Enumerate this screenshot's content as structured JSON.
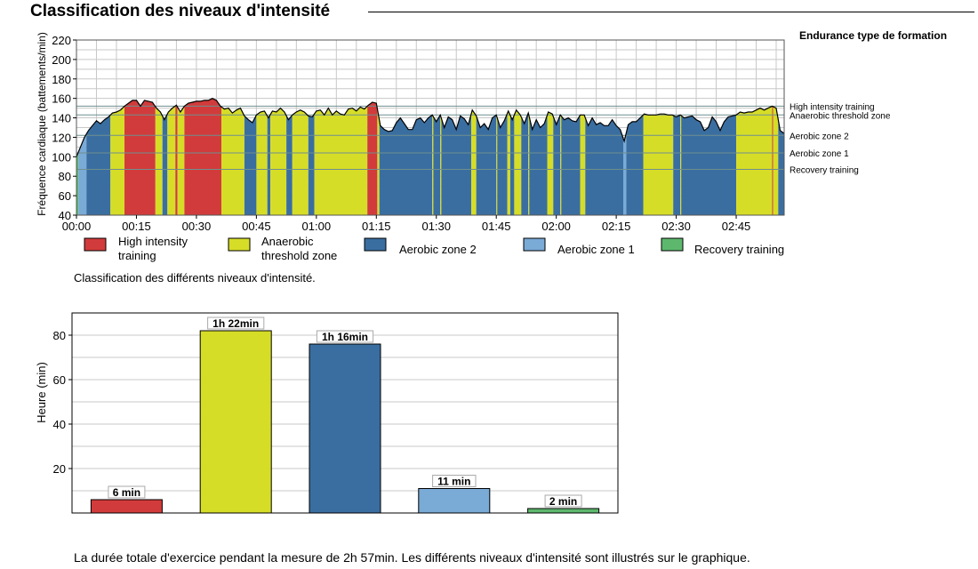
{
  "page": {
    "title": "Classification des niveaux d'intensité",
    "side_title": "Endurance type de formation",
    "caption": "Classification des différents niveaux d'intensité.",
    "summary": "La durée totale d'exercice pendant la mesure de 2h 57min. Les différents niveaux d'intensité sont illustrés sur le graphique."
  },
  "colors": {
    "high": "#d23b3b",
    "anaerobic": "#d6dd27",
    "aerobic2": "#3a6ea0",
    "aerobic1": "#7aaad6",
    "recovery": "#5db86d",
    "grid": "#c8c8c8",
    "zone_line": "#6f8f8f"
  },
  "chart_data": [
    {
      "type": "area",
      "title": "Classification des niveaux d'intensité",
      "xlabel": "",
      "ylabel": "Fréquence cardiaque (battements/min)",
      "xlim": [
        0,
        177
      ],
      "ylim": [
        40,
        220
      ],
      "x_ticks": [
        0,
        15,
        30,
        45,
        60,
        75,
        90,
        105,
        120,
        135,
        150,
        165
      ],
      "x_tick_labels": [
        "00:00",
        "00:15",
        "00:30",
        "00:45",
        "01:00",
        "01:15",
        "01:30",
        "01:45",
        "02:00",
        "02:15",
        "02:30",
        "02:45"
      ],
      "y_ticks": [
        40,
        60,
        80,
        100,
        120,
        140,
        160,
        180,
        200,
        220
      ],
      "zone_thresholds": [
        {
          "label": "High intensity training",
          "value": 152
        },
        {
          "label": "Anaerobic threshold zone",
          "value": 143
        },
        {
          "label": "Aerobic zone 2",
          "value": 122
        },
        {
          "label": "Aerobic zone 1",
          "value": 104
        },
        {
          "label": "Recovery training",
          "value": 87
        }
      ],
      "legend": [
        {
          "label": "High intensity training",
          "key": "high"
        },
        {
          "label": "Anaerobic threshold zone",
          "key": "anaerobic"
        },
        {
          "label": "Aerobic zone 2",
          "key": "aerobic2"
        },
        {
          "label": "Aerobic zone 1",
          "key": "aerobic1"
        },
        {
          "label": "Recovery training",
          "key": "recovery"
        }
      ],
      "legend_display": [
        "High intensity\ntraining",
        "Anaerobic\nthreshold zone",
        "Aerobic zone 2",
        "Aerobic zone 1",
        "Recovery training"
      ],
      "series": [
        {
          "name": "Heart rate",
          "x": [
            0,
            1,
            2,
            3,
            4,
            5,
            6,
            7,
            8,
            9,
            10,
            11,
            12,
            13,
            14,
            15,
            16,
            17,
            18,
            19,
            20,
            21,
            22,
            23,
            24,
            25,
            26,
            27,
            28,
            29,
            30,
            31,
            32,
            33,
            34,
            35,
            36,
            37,
            38,
            39,
            40,
            41,
            42,
            43,
            44,
            45,
            46,
            47,
            48,
            49,
            50,
            51,
            52,
            53,
            54,
            55,
            56,
            57,
            58,
            59,
            60,
            61,
            62,
            63,
            64,
            65,
            66,
            67,
            68,
            69,
            70,
            71,
            72,
            73,
            74,
            75,
            76,
            77,
            78,
            79,
            80,
            81,
            82,
            83,
            84,
            85,
            86,
            87,
            88,
            89,
            90,
            91,
            92,
            93,
            94,
            95,
            96,
            97,
            98,
            99,
            100,
            101,
            102,
            103,
            104,
            105,
            106,
            107,
            108,
            109,
            110,
            111,
            112,
            113,
            114,
            115,
            116,
            117,
            118,
            119,
            120,
            121,
            122,
            123,
            124,
            125,
            126,
            127,
            128,
            129,
            130,
            131,
            132,
            133,
            134,
            135,
            136,
            137,
            138,
            139,
            140,
            141,
            142,
            143,
            144,
            145,
            146,
            147,
            148,
            149,
            150,
            151,
            152,
            153,
            154,
            155,
            156,
            157,
            158,
            159,
            160,
            161,
            162,
            163,
            164,
            165,
            166,
            167,
            168,
            169,
            170,
            171,
            172,
            173,
            174,
            175,
            176,
            177
          ],
          "y": [
            100,
            110,
            120,
            127,
            132,
            137,
            134,
            138,
            141,
            145,
            146,
            148,
            152,
            155,
            158,
            158,
            152,
            158,
            157,
            156,
            150,
            146,
            138,
            146,
            150,
            153,
            146,
            152,
            155,
            156,
            157,
            157,
            158,
            158,
            160,
            158,
            152,
            149,
            150,
            145,
            148,
            150,
            142,
            138,
            135,
            143,
            146,
            147,
            140,
            147,
            146,
            150,
            146,
            138,
            143,
            146,
            148,
            146,
            142,
            141,
            147,
            148,
            143,
            150,
            143,
            147,
            144,
            143,
            149,
            150,
            147,
            151,
            149,
            153,
            156,
            155,
            132,
            128,
            126,
            127,
            135,
            140,
            134,
            128,
            128,
            138,
            140,
            135,
            140,
            143,
            136,
            143,
            130,
            141,
            138,
            128,
            142,
            139,
            133,
            148,
            142,
            130,
            134,
            128,
            140,
            143,
            130,
            137,
            147,
            138,
            148,
            143,
            134,
            145,
            128,
            138,
            130,
            134,
            146,
            144,
            133,
            143,
            138,
            140,
            137,
            136,
            143,
            143,
            132,
            140,
            133,
            135,
            132,
            132,
            138,
            132,
            128,
            116,
            133,
            136,
            136,
            140,
            144,
            143,
            143,
            143,
            144,
            144,
            143,
            143,
            141,
            143,
            140,
            141,
            142,
            138,
            136,
            127,
            130,
            141,
            136,
            127,
            136,
            141,
            142,
            143,
            146,
            145,
            146,
            146,
            148,
            150,
            148,
            150,
            152,
            150,
            127,
            124
          ]
        }
      ]
    },
    {
      "type": "bar",
      "title": "",
      "xlabel": "",
      "ylabel": "Heure (min)",
      "ylim": [
        0,
        90
      ],
      "y_ticks": [
        20,
        40,
        60,
        80
      ],
      "categories": [
        "High intensity training",
        "Anaerobic threshold zone",
        "Aerobic zone 2",
        "Aerobic zone 1",
        "Recovery training"
      ],
      "values": [
        6,
        82,
        76,
        11,
        2
      ],
      "data_labels": [
        "6 min",
        "1h 22min",
        "1h 16min",
        "11 min",
        "2 min"
      ],
      "colors": [
        "high",
        "anaerobic",
        "aerobic2",
        "aerobic1",
        "recovery"
      ]
    }
  ]
}
